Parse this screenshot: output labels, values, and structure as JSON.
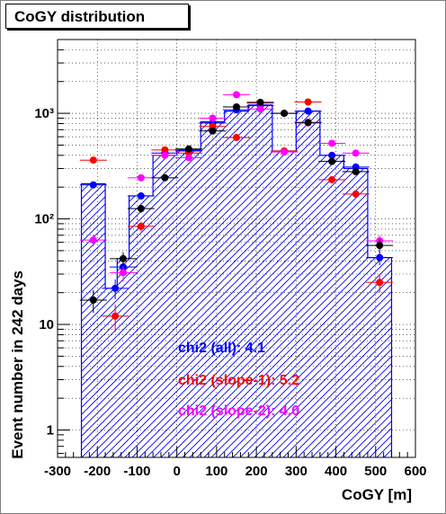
{
  "chart_data": {
    "type": "histogram",
    "title": "CoGY distribution",
    "xlabel": "CoGY [m]",
    "ylabel": "Event number in 242 days",
    "xlim": [
      -300,
      600
    ],
    "ylim": [
      0.55,
      5000
    ],
    "y_scale": "log",
    "grid": true,
    "x_ticks": [
      -300,
      -200,
      -100,
      0,
      100,
      200,
      300,
      400,
      500,
      600
    ],
    "y_ticks": [
      {
        "value": 1,
        "label": "1"
      },
      {
        "value": 10,
        "label": "10"
      },
      {
        "value": 100,
        "label": "10²"
      },
      {
        "value": 1000,
        "label": "10³"
      }
    ],
    "histogram": {
      "edges": [
        -240,
        -180,
        -150,
        -120,
        -60,
        0,
        60,
        120,
        180,
        240,
        300,
        360,
        420,
        480,
        540
      ],
      "values": [
        215,
        22,
        42,
        165,
        400,
        450,
        830,
        1050,
        1200,
        440,
        1050,
        400,
        300,
        43
      ],
      "color": "#0000ff"
    },
    "series": [
      {
        "color": "#0000ff",
        "x": [
          -210,
          -155,
          -135,
          -90,
          -30,
          30,
          90,
          150,
          210,
          270,
          330,
          390,
          450,
          510
        ],
        "y": [
          210,
          22,
          35,
          165,
          420,
          440,
          810,
          1080,
          1180,
          1000,
          1050,
          400,
          310,
          43
        ]
      },
      {
        "color": "#ff0000",
        "x": [
          -210,
          -155,
          -90,
          -30,
          30,
          90,
          150,
          210,
          270,
          330,
          390,
          450,
          510
        ],
        "y": [
          360,
          12,
          85,
          450,
          420,
          750,
          590,
          1250,
          440,
          1280,
          235,
          172,
          25
        ]
      },
      {
        "color": "#ff00ff",
        "x": [
          -210,
          -135,
          -90,
          -30,
          30,
          90,
          150,
          210,
          270,
          330,
          390,
          450,
          510
        ],
        "y": [
          63,
          31,
          245,
          400,
          380,
          900,
          1500,
          1100,
          430,
          810,
          520,
          420,
          62
        ]
      },
      {
        "color": "#000000",
        "x": [
          -210,
          -135,
          -90,
          -30,
          30,
          90,
          150,
          210,
          270,
          330,
          390,
          450,
          510
        ],
        "y": [
          17,
          42,
          125,
          245,
          460,
          680,
          1150,
          1270,
          1000,
          820,
          350,
          280,
          56
        ]
      }
    ],
    "annotations": [
      {
        "text": "chi2 (all): 4.1",
        "color": "#0000ff"
      },
      {
        "text": "chi2 (slope-1): 5.2",
        "color": "#ff0000"
      },
      {
        "text": "chi2 (slope-2): 4.0",
        "color": "#ff00ff"
      }
    ]
  }
}
